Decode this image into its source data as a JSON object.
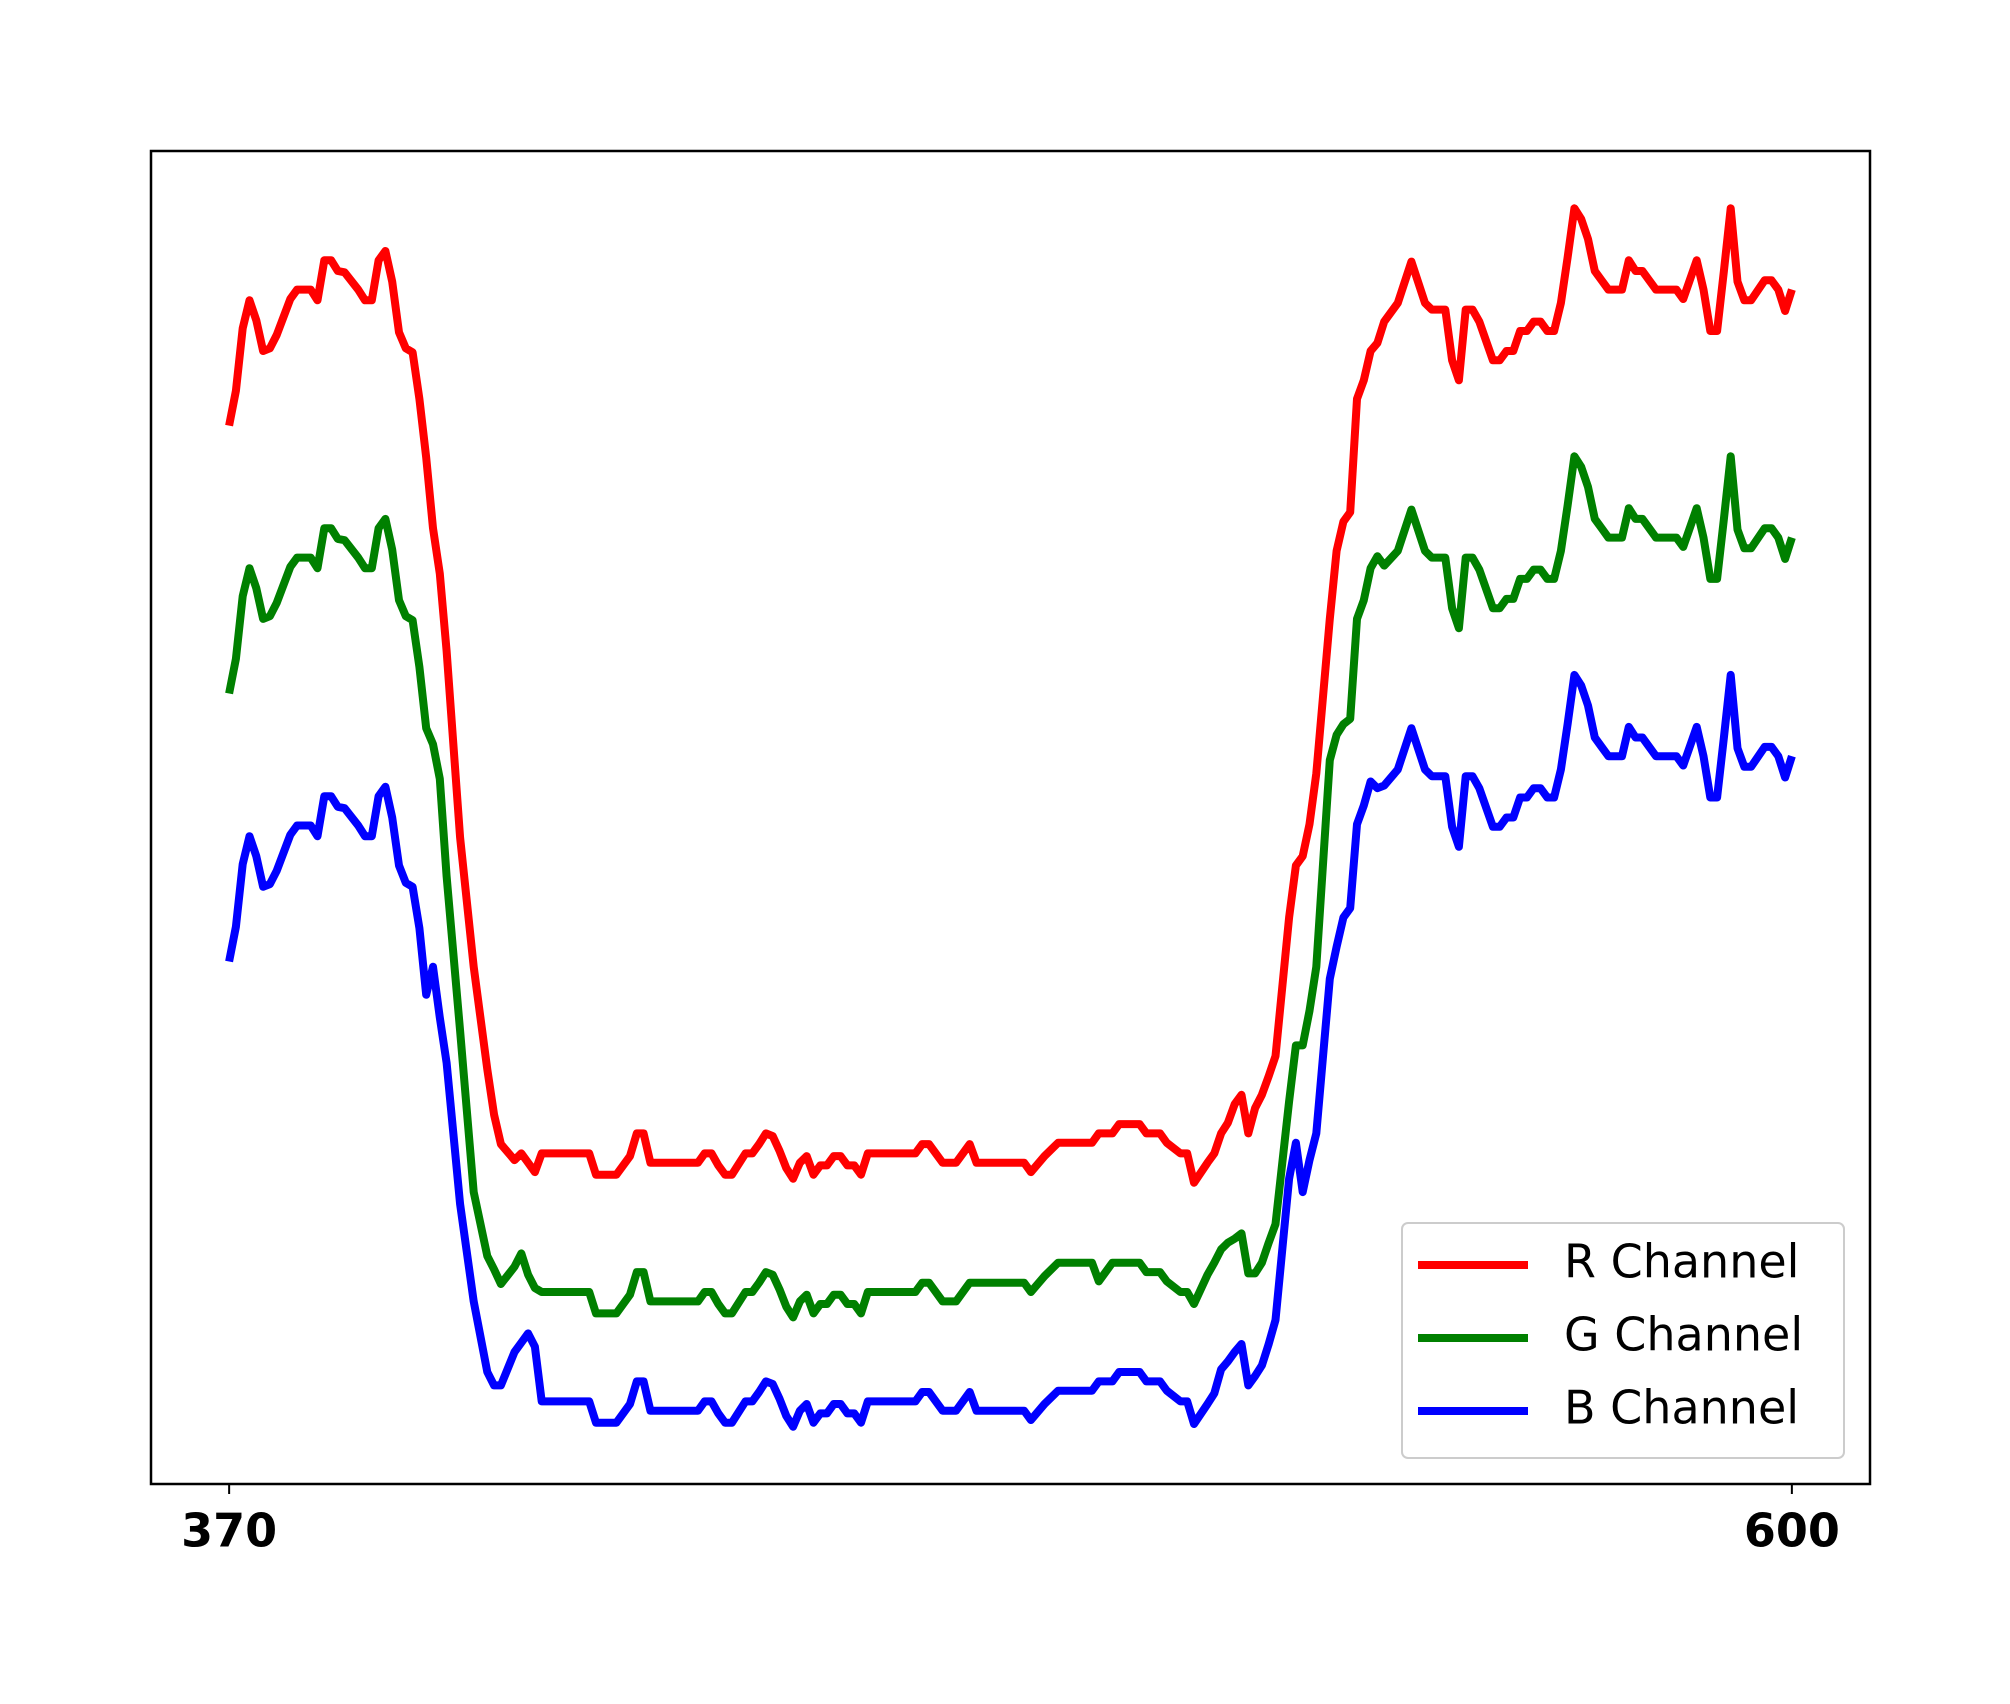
{
  "chart_data": {
    "type": "line",
    "x": [
      370,
      371,
      372,
      373,
      374,
      375,
      376,
      377,
      379,
      380,
      382,
      383,
      384,
      385,
      386,
      387,
      389,
      390,
      391,
      392,
      393,
      394,
      395,
      396,
      397,
      398,
      399,
      400,
      401,
      402,
      404,
      406,
      408,
      409,
      410,
      412,
      413,
      414,
      415,
      416,
      421,
      422,
      423,
      424,
      427,
      429,
      430,
      431,
      432,
      439,
      440,
      441,
      442,
      443,
      444,
      446,
      447,
      448,
      449,
      450,
      451,
      452,
      453,
      454,
      455,
      456,
      457,
      458,
      459,
      460,
      461,
      462,
      463,
      464,
      471,
      472,
      473,
      475,
      477,
      479,
      480,
      487,
      488,
      490,
      492,
      497,
      498,
      500,
      501,
      504,
      505,
      507,
      508,
      510,
      511,
      512,
      514,
      515,
      516,
      517,
      518,
      519,
      520,
      521,
      522,
      523,
      524,
      526,
      527,
      528,
      529,
      530,
      532,
      533,
      534,
      535,
      536,
      537,
      538,
      539,
      540,
      542,
      544,
      546,
      547,
      549,
      550,
      551,
      552,
      553,
      554,
      556,
      557,
      558,
      559,
      560,
      561,
      562,
      563,
      564,
      565,
      566,
      567,
      568,
      569,
      570,
      571,
      572,
      573,
      575,
      576,
      577,
      578,
      580,
      583,
      584,
      586,
      587,
      588,
      589,
      590,
      591,
      592,
      593,
      594,
      596,
      597,
      598,
      599,
      600
    ],
    "series": [
      {
        "name": "R Channel",
        "color": "#ff0000",
        "values": [
          79.4,
          82.0,
          86.7,
          88.8,
          87.3,
          85.0,
          85.2,
          86.2,
          88.9,
          89.6,
          89.6,
          88.8,
          91.8,
          91.8,
          91.0,
          90.9,
          89.6,
          88.8,
          88.8,
          91.8,
          92.5,
          90.2,
          86.4,
          85.2,
          84.9,
          81.4,
          77.0,
          71.7,
          68.3,
          62.5,
          48.5,
          38.8,
          31.1,
          27.7,
          25.5,
          24.3,
          24.8,
          24.1,
          23.4,
          24.8,
          24.8,
          24.8,
          24.8,
          23.2,
          23.2,
          24.6,
          26.3,
          26.3,
          24.1,
          24.1,
          24.8,
          24.8,
          23.9,
          23.2,
          23.2,
          24.8,
          24.8,
          25.5,
          26.3,
          26.1,
          25.0,
          23.7,
          22.9,
          24.1,
          24.6,
          23.2,
          23.9,
          23.9,
          24.6,
          24.6,
          23.9,
          23.9,
          23.2,
          24.8,
          24.8,
          25.5,
          25.5,
          24.1,
          24.1,
          25.5,
          24.1,
          24.1,
          23.4,
          24.6,
          25.6,
          25.6,
          26.3,
          26.3,
          27.0,
          27.0,
          26.3,
          26.3,
          25.6,
          24.8,
          24.8,
          22.6,
          24.1,
          24.8,
          26.3,
          27.1,
          28.5,
          29.2,
          26.3,
          28.2,
          29.2,
          30.6,
          32.1,
          42.5,
          46.4,
          47.1,
          49.5,
          53.3,
          64.9,
          70.0,
          72.2,
          72.9,
          81.4,
          82.8,
          85.0,
          85.6,
          87.2,
          88.6,
          91.7,
          88.6,
          88.1,
          88.1,
          84.3,
          82.8,
          88.1,
          88.1,
          87.2,
          84.3,
          84.3,
          85.0,
          85.0,
          86.5,
          86.5,
          87.2,
          87.2,
          86.5,
          86.5,
          88.6,
          92.0,
          95.7,
          94.9,
          93.4,
          91.0,
          90.3,
          89.6,
          89.6,
          91.8,
          91.0,
          91.0,
          89.6,
          89.6,
          88.9,
          91.8,
          89.6,
          86.5,
          86.5,
          91.0,
          95.7,
          90.2,
          88.8,
          88.8,
          90.3,
          90.3,
          89.6,
          88.0,
          89.6
        ]
      },
      {
        "name": "G Channel",
        "color": "#008000",
        "values": [
          59.3,
          61.9,
          66.6,
          68.7,
          67.2,
          64.9,
          65.1,
          66.1,
          68.8,
          69.5,
          69.5,
          68.7,
          71.7,
          71.7,
          70.9,
          70.8,
          69.5,
          68.7,
          68.7,
          71.7,
          72.4,
          70.1,
          66.3,
          65.1,
          64.8,
          61.3,
          56.7,
          55.5,
          52.9,
          45.6,
          34.0,
          21.9,
          17.1,
          16.1,
          15.0,
          16.3,
          17.3,
          15.7,
          14.7,
          14.4,
          14.4,
          14.4,
          14.4,
          12.8,
          12.8,
          14.2,
          15.9,
          15.9,
          13.7,
          13.7,
          14.4,
          14.4,
          13.5,
          12.8,
          12.8,
          14.4,
          14.4,
          15.1,
          15.9,
          15.7,
          14.6,
          13.3,
          12.5,
          13.7,
          14.2,
          12.8,
          13.5,
          13.5,
          14.2,
          14.2,
          13.5,
          13.5,
          12.8,
          14.4,
          14.4,
          15.1,
          15.1,
          13.7,
          13.7,
          15.1,
          15.1,
          15.1,
          14.4,
          15.6,
          16.6,
          16.6,
          15.2,
          16.6,
          16.6,
          16.6,
          15.9,
          15.9,
          15.2,
          14.4,
          14.4,
          13.5,
          15.7,
          16.6,
          17.6,
          18.1,
          18.4,
          18.8,
          15.8,
          15.8,
          16.6,
          18.1,
          19.5,
          28.7,
          32.9,
          32.9,
          35.5,
          38.8,
          54.3,
          56.2,
          57.0,
          57.4,
          64.9,
          66.3,
          68.7,
          69.6,
          68.9,
          70.0,
          73.1,
          70.0,
          69.5,
          69.5,
          65.7,
          64.2,
          69.5,
          69.5,
          68.6,
          65.7,
          65.7,
          66.4,
          66.4,
          67.9,
          67.9,
          68.6,
          68.6,
          67.9,
          67.9,
          70.0,
          73.4,
          77.1,
          76.3,
          74.8,
          72.4,
          71.7,
          71.0,
          71.0,
          73.2,
          72.4,
          72.4,
          71.0,
          71.0,
          70.3,
          73.2,
          71.0,
          67.9,
          67.9,
          72.4,
          77.1,
          71.6,
          70.2,
          70.2,
          71.7,
          71.7,
          71.0,
          69.4,
          71.0
        ]
      },
      {
        "name": "B Channel",
        "color": "#0000ff",
        "values": [
          39.2,
          41.8,
          46.5,
          48.6,
          47.1,
          44.8,
          45.0,
          46.0,
          48.7,
          49.4,
          49.4,
          48.6,
          51.6,
          51.6,
          50.8,
          50.7,
          49.4,
          48.6,
          48.6,
          51.6,
          52.3,
          50.0,
          46.4,
          45.1,
          44.8,
          41.7,
          36.7,
          38.8,
          35.0,
          31.6,
          21.0,
          13.7,
          8.4,
          7.4,
          7.4,
          9.9,
          10.6,
          11.3,
          10.3,
          6.2,
          6.2,
          6.2,
          6.2,
          4.6,
          4.6,
          6.0,
          7.7,
          7.7,
          5.5,
          5.5,
          6.2,
          6.2,
          5.3,
          4.6,
          4.6,
          6.2,
          6.2,
          6.9,
          7.7,
          7.5,
          6.4,
          5.1,
          4.3,
          5.5,
          6.0,
          4.6,
          5.3,
          5.3,
          6.0,
          6.0,
          5.3,
          5.3,
          4.6,
          6.2,
          6.2,
          6.9,
          6.9,
          5.5,
          5.5,
          6.9,
          5.5,
          5.5,
          4.8,
          6.0,
          7.0,
          7.0,
          7.7,
          7.7,
          8.4,
          8.4,
          7.7,
          7.7,
          7.0,
          6.2,
          6.2,
          4.5,
          6.0,
          6.8,
          8.6,
          9.2,
          9.9,
          10.5,
          7.4,
          8.1,
          8.9,
          10.5,
          12.3,
          22.9,
          25.6,
          21.9,
          24.3,
          26.3,
          37.9,
          40.3,
          42.5,
          43.2,
          49.5,
          50.9,
          52.7,
          52.2,
          52.4,
          53.6,
          56.7,
          53.6,
          53.1,
          53.1,
          49.3,
          47.8,
          53.1,
          53.1,
          52.2,
          49.3,
          49.3,
          50.0,
          50.0,
          51.5,
          51.5,
          52.2,
          52.2,
          51.5,
          51.5,
          53.6,
          57.0,
          60.7,
          59.9,
          58.4,
          56.0,
          55.3,
          54.6,
          54.6,
          56.8,
          56.0,
          56.0,
          54.6,
          54.6,
          53.9,
          56.8,
          54.6,
          51.5,
          51.5,
          56.0,
          60.7,
          55.2,
          53.8,
          53.8,
          55.3,
          55.3,
          54.6,
          53.0,
          54.6
        ]
      }
    ],
    "xlim": [
      358.5,
      611.5
    ],
    "xticks": [
      370,
      600
    ],
    "ylim": [
      0,
      100
    ],
    "legend": "lower right"
  }
}
